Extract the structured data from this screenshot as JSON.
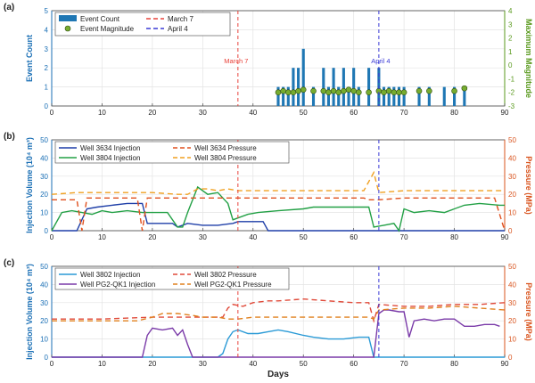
{
  "colors": {
    "blue_axis": "#1a6fb5",
    "green_axis": "#5a9a1e",
    "red_axis": "#d9541e",
    "bar": "#1f77b4",
    "marker_fill": "#77ac30",
    "march_line": "#e8423a",
    "april_line": "#3a3ad6",
    "w3634_inj": "#1f3fa8",
    "w3804_inj": "#22a045",
    "w3634_p": "#e0501e",
    "w3804_p": "#f0a020",
    "w3802_inj": "#2a9ad6",
    "wpg2_inj": "#7a3aa8",
    "w3802_p": "#e04a3a",
    "wpg2_p": "#e0801e"
  },
  "panels": [
    {
      "tag": "(a)",
      "ylabel": "Event Count",
      "y2label": "Maximum Magnitude"
    },
    {
      "tag": "(b)",
      "ylabel": "Injection Volume (10⁴ m³)",
      "y2label": "Pressure (MPa)"
    },
    {
      "tag": "(c)",
      "ylabel": "Injection Volume (10⁴ m³)",
      "y2label": "Pressure (MPa)"
    }
  ],
  "xlabel": "Days",
  "annotations": {
    "march": "March 7",
    "april": "April 4"
  },
  "chart_data": [
    {
      "type": "bar",
      "xlim": [
        0,
        90
      ],
      "ylim": [
        0,
        5
      ],
      "y2lim": [
        -3,
        4
      ],
      "xticks": [
        0,
        10,
        20,
        30,
        40,
        50,
        60,
        70,
        80,
        90
      ],
      "yticks": [
        0,
        1,
        2,
        3,
        4,
        5
      ],
      "y2ticks": [
        -3,
        -2,
        -1,
        0,
        1,
        2,
        3,
        4
      ],
      "grid": true,
      "legend": [
        "Event Count",
        "Event Magnitude",
        "March 7",
        "April 4"
      ],
      "legend_placement": "top-left",
      "vlines": [
        {
          "x": 37,
          "label": "March 7"
        },
        {
          "x": 65,
          "label": "April 4"
        }
      ],
      "series": [
        {
          "name": "Event Count",
          "x": [
            45,
            46,
            47,
            48,
            49,
            50,
            52,
            54,
            55,
            56,
            57,
            58,
            59,
            60,
            61,
            63,
            65,
            66,
            67,
            68,
            69,
            70,
            73,
            75,
            78,
            80,
            82
          ],
          "values": [
            1,
            1,
            1,
            2,
            2,
            3,
            1,
            2,
            1,
            2,
            1,
            2,
            1,
            2,
            1,
            2,
            2,
            1,
            1,
            1,
            1,
            1,
            1,
            1,
            1,
            1,
            1
          ]
        },
        {
          "name": "Event Magnitude",
          "x": [
            45,
            46,
            47,
            48,
            49,
            50,
            52,
            54,
            55,
            56,
            57,
            58,
            59,
            60,
            61,
            63,
            65,
            66,
            67,
            68,
            69,
            70,
            73,
            75,
            80,
            82
          ],
          "values": [
            -2,
            -1.9,
            -2,
            -2,
            -1.9,
            -1.8,
            -1.9,
            -1.9,
            -2,
            -1.9,
            -2,
            -1.9,
            -1.8,
            -1.9,
            -2,
            -2,
            -1.9,
            -2,
            -1.9,
            -2,
            -2,
            -2,
            -1.9,
            -1.9,
            -1.9,
            -1.7
          ]
        }
      ]
    },
    {
      "type": "line",
      "xlim": [
        0,
        90
      ],
      "ylim": [
        0,
        50
      ],
      "y2lim": [
        0,
        50
      ],
      "xticks": [
        0,
        10,
        20,
        30,
        40,
        50,
        60,
        70,
        80,
        90
      ],
      "yticks": [
        0,
        10,
        20,
        30,
        40,
        50
      ],
      "y2ticks": [
        0,
        10,
        20,
        30,
        40,
        50
      ],
      "grid": true,
      "legend_placement": "top-left",
      "vlines": [
        {
          "x": 37
        },
        {
          "x": 65
        }
      ],
      "series": [
        {
          "name": "Well 3634 Injection",
          "axis": "left",
          "x": [
            0,
            5,
            7,
            9,
            12,
            15,
            18,
            19,
            20,
            24,
            25,
            27,
            30,
            33,
            36,
            37,
            40,
            42,
            43,
            90
          ],
          "values": [
            0,
            0,
            12,
            13,
            14,
            15,
            15,
            4,
            4,
            4,
            2,
            4,
            3,
            3,
            4,
            5,
            5,
            5,
            0,
            0
          ]
        },
        {
          "name": "Well 3804 Injection",
          "axis": "left",
          "x": [
            0,
            2,
            4,
            6,
            8,
            10,
            12,
            15,
            18,
            20,
            23,
            25,
            26,
            27,
            29,
            31,
            33,
            35,
            36,
            37,
            39,
            41,
            45,
            50,
            52,
            60,
            63,
            64,
            66,
            68,
            69,
            70,
            72,
            75,
            78,
            82,
            85,
            89,
            90
          ],
          "values": [
            0,
            10,
            11,
            10,
            9,
            11,
            10,
            11,
            10,
            10,
            10,
            2,
            2,
            10,
            24,
            20,
            21,
            15,
            6,
            7,
            9,
            10,
            11,
            12,
            13,
            13,
            13,
            2,
            3,
            4,
            0,
            12,
            10,
            11,
            10,
            14,
            15,
            14,
            14
          ]
        },
        {
          "name": "Well 3634 Pressure",
          "axis": "right",
          "x": [
            0,
            5,
            6,
            7,
            9,
            12,
            15,
            17,
            18,
            19,
            20,
            25,
            30,
            37,
            45,
            55,
            62,
            63,
            65,
            70,
            80,
            88,
            90
          ],
          "values": [
            17,
            17,
            0,
            18,
            18,
            18,
            18,
            18,
            0,
            18,
            18,
            18,
            18,
            18,
            18,
            18,
            18,
            17,
            17,
            18,
            18,
            18,
            0
          ]
        },
        {
          "name": "Well 3804 Pressure",
          "axis": "right",
          "x": [
            0,
            5,
            10,
            15,
            20,
            25,
            27,
            29,
            31,
            33,
            35,
            37,
            45,
            55,
            62,
            63,
            64,
            65,
            70,
            75,
            80,
            85,
            90
          ],
          "values": [
            20,
            21,
            21,
            21,
            21,
            20,
            20,
            23,
            23,
            22,
            23,
            22,
            22,
            22,
            22,
            27,
            32,
            21,
            22,
            22,
            22,
            22,
            22
          ]
        }
      ]
    },
    {
      "type": "line",
      "xlim": [
        0,
        90
      ],
      "ylim": [
        0,
        50
      ],
      "y2lim": [
        0,
        50
      ],
      "xticks": [
        0,
        10,
        20,
        30,
        40,
        50,
        60,
        70,
        80,
        90
      ],
      "yticks": [
        0,
        10,
        20,
        30,
        40,
        50
      ],
      "y2ticks": [
        0,
        10,
        20,
        30,
        40,
        50
      ],
      "grid": true,
      "legend_placement": "top-left",
      "vlines": [
        {
          "x": 37
        },
        {
          "x": 65
        }
      ],
      "series": [
        {
          "name": "Well 3802 Injection",
          "axis": "left",
          "x": [
            0,
            33,
            34,
            35,
            36,
            37,
            39,
            41,
            43,
            45,
            47,
            50,
            52,
            55,
            58,
            61,
            63,
            64,
            65,
            90
          ],
          "values": [
            0,
            0,
            2,
            10,
            14,
            15,
            13,
            13,
            14,
            15,
            14,
            12,
            11,
            10,
            10,
            11,
            11,
            0,
            0,
            0
          ]
        },
        {
          "name": "Well PG2-QK1 Injection",
          "axis": "left",
          "x": [
            0,
            18,
            19,
            20,
            22,
            24,
            25,
            26,
            27,
            28,
            64,
            65,
            66,
            67,
            69,
            70,
            71,
            72,
            74,
            76,
            78,
            80,
            82,
            84,
            86,
            88,
            89
          ],
          "values": [
            0,
            0,
            12,
            16,
            15,
            16,
            12,
            15,
            7,
            0,
            0,
            24,
            26,
            26,
            25,
            25,
            11,
            20,
            21,
            20,
            21,
            21,
            17,
            17,
            18,
            18,
            17
          ]
        },
        {
          "name": "Well 3802 Pressure",
          "axis": "right",
          "x": [
            0,
            10,
            20,
            30,
            34,
            35,
            36,
            38,
            40,
            43,
            45,
            50,
            55,
            60,
            63,
            64,
            65,
            70,
            75,
            80,
            85,
            90
          ],
          "values": [
            21,
            21,
            22,
            22,
            22,
            27,
            29,
            28,
            30,
            31,
            31,
            32,
            31,
            30,
            30,
            20,
            29,
            28,
            28,
            29,
            29,
            30
          ]
        },
        {
          "name": "Well PG2-QK1 Pressure",
          "axis": "right",
          "x": [
            0,
            10,
            17,
            20,
            22,
            25,
            28,
            30,
            33,
            35,
            37,
            40,
            45,
            50,
            55,
            60,
            63,
            64,
            65,
            70,
            75,
            80,
            85,
            90
          ],
          "values": [
            20,
            20,
            20,
            22,
            24,
            24,
            23,
            22,
            22,
            21,
            21,
            22,
            22,
            22,
            22,
            22,
            22,
            21,
            26,
            27,
            27,
            28,
            27,
            26
          ]
        }
      ]
    }
  ]
}
